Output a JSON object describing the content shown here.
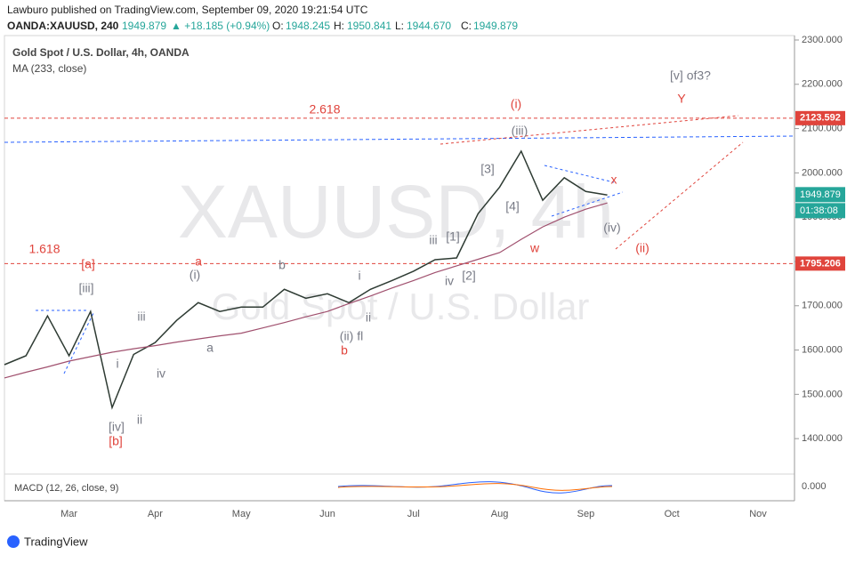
{
  "header": {
    "published": "Lawburo published on TradingView.com, September 09, 2020 19:21:54 UTC",
    "symbol": "OANDA:XAUUSD, 240",
    "price": "1949.879",
    "change": "▲ +18.185 (+0.94%)",
    "o_label": "O:",
    "o": "1948.245",
    "h_label": "H:",
    "h": "1950.841",
    "l_label": "L:",
    "l": "1944.670",
    "c_label": "C:",
    "c": "1949.879"
  },
  "footer": {
    "brand": "TradingView"
  },
  "chart_data": {
    "type": "line",
    "title": "Gold Spot / U.S. Dollar, 4h, OANDA",
    "watermark": [
      "XAUUSD, 4h",
      "Gold Spot / U.S. Dollar"
    ],
    "categories": [
      null,
      null,
      null,
      "Mar",
      null,
      null,
      null,
      "Apr",
      null,
      null,
      null,
      "May",
      null,
      null,
      null,
      "Jun",
      null,
      null,
      null,
      "Jul",
      null,
      null,
      null,
      "Aug",
      null,
      null,
      null,
      "Sep",
      null,
      null,
      null,
      "Oct",
      null,
      null,
      null,
      "Nov",
      null
    ],
    "series": [
      {
        "name": "Gold Spot / U.S. Dollar",
        "color": "#2e3b33",
        "values": [
          1567,
          1587,
          1677,
          1587,
          1687,
          1470,
          1590,
          1617,
          1667,
          1707,
          1687,
          1697,
          1697,
          1737,
          1717,
          1727,
          1707,
          1737,
          1757,
          1778,
          1804,
          1808,
          1908,
          1968,
          2049,
          1938,
          1989,
          1958,
          1950,
          null,
          null,
          null,
          null,
          null,
          null,
          null,
          null
        ]
      },
      {
        "name": "MA (233, close)",
        "color": "#a0506e",
        "values": [
          1537,
          1550,
          1562,
          1575,
          1585,
          1595,
          1603,
          1610,
          1618,
          1625,
          1632,
          1638,
          1650,
          1662,
          1675,
          1687,
          1705,
          1722,
          1740,
          1757,
          1775,
          1790,
          1805,
          1820,
          1850,
          1878,
          1900,
          1918,
          1932,
          null,
          null,
          null,
          null,
          null,
          null,
          null,
          null
        ]
      }
    ],
    "ylim": [
      1326,
      2310
    ],
    "yticks": [
      {
        "value": 1400,
        "label": "1400.000"
      },
      {
        "value": 1500,
        "label": "1500.000"
      },
      {
        "value": 1600,
        "label": "1600.000"
      },
      {
        "value": 1700,
        "label": "1700.000"
      },
      {
        "value": 1800,
        "label": "1800.000"
      },
      {
        "value": 1900,
        "label": "1900.000"
      },
      {
        "value": 2000,
        "label": "2000.000"
      },
      {
        "value": 2100,
        "label": "2100.000"
      },
      {
        "value": 2200,
        "label": "2200.000"
      },
      {
        "value": 2300,
        "label": "2300.000"
      }
    ],
    "levels": [
      {
        "value": 2123.592,
        "name": "2.618",
        "color": "#e0443c"
      },
      {
        "value": 1795.206,
        "name": "1.618",
        "color": "#e0443c"
      }
    ],
    "last_price": 1949.879,
    "timer": "01:38:08",
    "macd_label": "MACD (12, 26, close, 9)",
    "macd_zero": "0.000",
    "annotations": [
      {
        "text": "[v] of3?",
        "color": "#787b86"
      },
      {
        "text": "Y",
        "color": "#e0443c"
      },
      {
        "text": "(i)",
        "color": "#e0443c"
      },
      {
        "text": "(iii)",
        "color": "#787b86"
      },
      {
        "text": "[3]",
        "color": "#787b86"
      },
      {
        "text": "x",
        "color": "#e0443c"
      },
      {
        "text": "[4]",
        "color": "#787b86"
      },
      {
        "text": "(iv)",
        "color": "#787b86"
      },
      {
        "text": "iii",
        "color": "#787b86"
      },
      {
        "text": "[1]",
        "color": "#787b86"
      },
      {
        "text": "w",
        "color": "#e0443c"
      },
      {
        "text": "(ii)",
        "color": "#e0443c"
      },
      {
        "text": "[2]",
        "color": "#787b86"
      },
      {
        "text": "iv",
        "color": "#787b86"
      },
      {
        "text": "[a]",
        "color": "#e0443c"
      },
      {
        "text": "a",
        "color": "#e0443c"
      },
      {
        "text": "b",
        "color": "#787b86"
      },
      {
        "text": "(i)",
        "color": "#787b86"
      },
      {
        "text": "i",
        "color": "#787b86"
      },
      {
        "text": "[iii]",
        "color": "#787b86"
      },
      {
        "text": "ii",
        "color": "#787b86"
      },
      {
        "text": "iii",
        "color": "#787b86"
      },
      {
        "text": "(ii) fl",
        "color": "#787b86"
      },
      {
        "text": "a",
        "color": "#787b86"
      },
      {
        "text": "b",
        "color": "#e0443c"
      },
      {
        "text": "iv",
        "color": "#787b86"
      },
      {
        "text": "i",
        "color": "#787b86"
      },
      {
        "text": "ii",
        "color": "#787b86"
      },
      {
        "text": "[iv]",
        "color": "#787b86"
      },
      {
        "text": "[b]",
        "color": "#e0443c"
      }
    ]
  }
}
